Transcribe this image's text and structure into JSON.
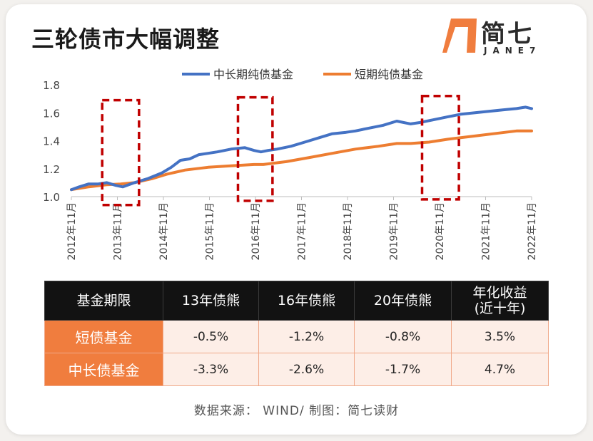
{
  "title": "三轮债市大幅调整",
  "logo": {
    "name": "简七",
    "sub": "JANE7"
  },
  "colors": {
    "blue": "#4472c4",
    "orange": "#ed7d31",
    "box": "#c00000",
    "header_bg": "#121212",
    "row_head_bg": "#f07d3e",
    "cell_bg": "#fdeee7"
  },
  "chart_data": {
    "type": "line",
    "y_ticks": [
      "1.8",
      "1.6",
      "1.4",
      "1.2",
      "1.0"
    ],
    "ylim": [
      1.0,
      1.8
    ],
    "x_ticks": [
      "2012年11月",
      "2013年11月",
      "2014年11月",
      "2015年11月",
      "2016年11月",
      "2017年11月",
      "2018年11月",
      "2019年11月",
      "2020年11月",
      "2021年11月",
      "2022年11月"
    ],
    "x_years": [
      2012,
      2013,
      2014,
      2015,
      2016,
      2017,
      2018,
      2019,
      2020,
      2021,
      2022
    ],
    "xlim": [
      2012.83,
      2022.83
    ],
    "series": [
      {
        "name": "中长期纯债基金",
        "color": "#4472c4",
        "x": [
          2012.83,
          2013.0,
          2013.2,
          2013.4,
          2013.6,
          2013.8,
          2013.95,
          2014.2,
          2014.5,
          2014.8,
          2015.0,
          2015.2,
          2015.4,
          2015.6,
          2015.8,
          2016.0,
          2016.3,
          2016.6,
          2016.8,
          2016.95,
          2017.1,
          2017.3,
          2017.6,
          2017.9,
          2018.2,
          2018.5,
          2018.8,
          2019.0,
          2019.3,
          2019.6,
          2019.9,
          2020.2,
          2020.4,
          2020.7,
          2021.0,
          2021.3,
          2021.6,
          2021.9,
          2022.2,
          2022.5,
          2022.7,
          2022.83
        ],
        "y": [
          1.05,
          1.07,
          1.09,
          1.09,
          1.1,
          1.08,
          1.07,
          1.1,
          1.13,
          1.17,
          1.21,
          1.26,
          1.27,
          1.3,
          1.31,
          1.32,
          1.34,
          1.35,
          1.33,
          1.32,
          1.33,
          1.34,
          1.36,
          1.39,
          1.42,
          1.45,
          1.46,
          1.47,
          1.49,
          1.51,
          1.54,
          1.52,
          1.53,
          1.55,
          1.57,
          1.59,
          1.6,
          1.61,
          1.62,
          1.63,
          1.64,
          1.63
        ]
      },
      {
        "name": "短期纯债基金",
        "color": "#ed7d31",
        "x": [
          2012.83,
          2013.2,
          2013.6,
          2013.9,
          2014.2,
          2014.6,
          2014.9,
          2015.3,
          2015.8,
          2016.3,
          2016.8,
          2017.0,
          2017.5,
          2018.0,
          2018.5,
          2019.0,
          2019.5,
          2019.9,
          2020.2,
          2020.6,
          2021.0,
          2021.5,
          2022.0,
          2022.5,
          2022.83
        ],
        "y": [
          1.05,
          1.07,
          1.085,
          1.09,
          1.1,
          1.13,
          1.16,
          1.19,
          1.21,
          1.22,
          1.23,
          1.23,
          1.25,
          1.28,
          1.31,
          1.34,
          1.36,
          1.38,
          1.38,
          1.39,
          1.41,
          1.43,
          1.45,
          1.47,
          1.47
        ]
      }
    ],
    "highlight_boxes": [
      {
        "x0": 2013.5,
        "x1": 2014.3,
        "y0": 0.94,
        "y1": 1.69
      },
      {
        "x0": 2016.45,
        "x1": 2017.2,
        "y0": 0.97,
        "y1": 1.71
      },
      {
        "x0": 2020.45,
        "x1": 2021.25,
        "y0": 0.98,
        "y1": 1.72
      }
    ],
    "legend": "top"
  },
  "table": {
    "headers": [
      "基金期限",
      "13年债熊",
      "16年债熊",
      "20年债熊",
      "年化收益\n(近十年)"
    ],
    "rows": [
      {
        "label": "短债基金",
        "values": [
          "-0.5%",
          "-1.2%",
          "-0.8%",
          "3.5%"
        ]
      },
      {
        "label": "中长债基金",
        "values": [
          "-3.3%",
          "-2.6%",
          "-1.7%",
          "4.7%"
        ]
      }
    ]
  },
  "source": "数据来源： WIND/ 制图：简七读财"
}
